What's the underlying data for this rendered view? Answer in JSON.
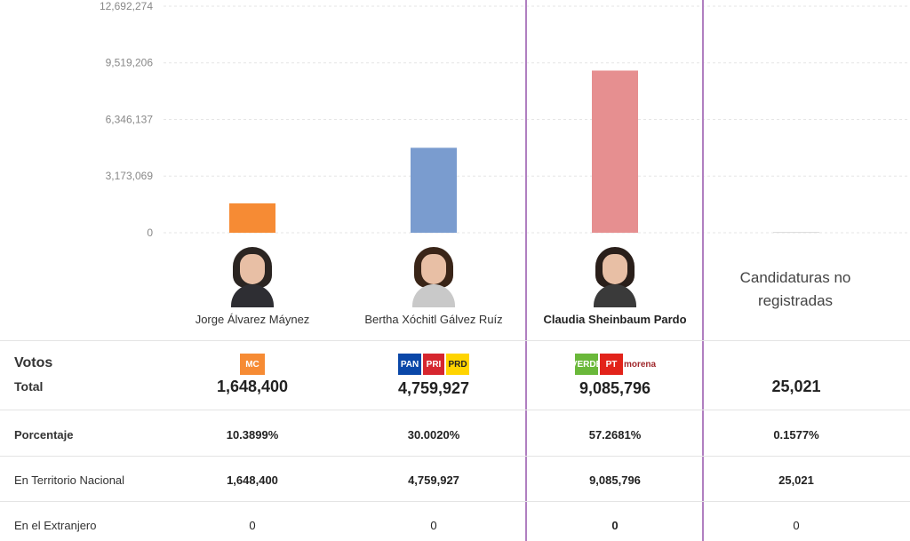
{
  "chart_data": {
    "type": "bar",
    "categories": [
      "Jorge Álvarez Máynez",
      "Bertha Xóchitl Gálvez Ruíz",
      "Claudia Sheinbaum Pardo",
      "Candidaturas no registradas"
    ],
    "values": [
      1648400,
      4759927,
      9085796,
      25021
    ],
    "colors": [
      "#f68b34",
      "#7a9ccf",
      "#e68f90",
      "#dddddd"
    ],
    "yticks": [
      0,
      3173069,
      6346137,
      9519206,
      12692274
    ],
    "ytick_labels": [
      "0",
      "3,173,069",
      "6,346,137",
      "9,519,206",
      "12,692,274"
    ],
    "ylim": [
      0,
      12692274
    ],
    "grid": true
  },
  "candidates": [
    {
      "name": "Jorge Álvarez Máynez",
      "hair": "#2b2522",
      "body": "#2e2e33",
      "logos": [
        {
          "text": "MC",
          "bg": "#f68b34",
          "fg": "#ffffff",
          "w": 28
        }
      ]
    },
    {
      "name": "Bertha Xóchitl Gálvez Ruíz",
      "hair": "#3a2518",
      "body": "#c9c9c9",
      "logos": [
        {
          "text": "PAN",
          "bg": "#0a47a8",
          "fg": "#ffffff",
          "w": 26
        },
        {
          "text": "PRI",
          "bg": "#d6262e",
          "fg": "#ffffff",
          "w": 24
        },
        {
          "text": "PRD",
          "bg": "#ffd400",
          "fg": "#222222",
          "w": 26
        }
      ]
    },
    {
      "name": "Claudia Sheinbaum Pardo",
      "hair": "#2a1f1a",
      "body": "#3a3a3a",
      "logos": [
        {
          "text": "VERDE",
          "bg": "#6ab83a",
          "fg": "#ffffff",
          "w": 26
        },
        {
          "text": "PT",
          "bg": "#e2231a",
          "fg": "#ffffff",
          "w": 26
        },
        {
          "text": "morena",
          "bg": "#ffffff",
          "fg": "#a0282c",
          "w": 34
        }
      ]
    }
  ],
  "cnr_label": "Candidaturas no registradas",
  "rows": {
    "votos_label": "Votos",
    "total_label": "Total",
    "porcentaje_label": "Porcentaje",
    "territorio_label": "En Territorio Nacional",
    "extranjero_label": "En el Extranjero"
  },
  "columns": [
    {
      "total": "1,648,400",
      "porcentaje": "10.3899%",
      "territorio": "1,648,400",
      "extranjero": "0"
    },
    {
      "total": "4,759,927",
      "porcentaje": "30.0020%",
      "territorio": "4,759,927",
      "extranjero": "0"
    },
    {
      "total": "9,085,796",
      "porcentaje": "57.2681%",
      "territorio": "9,085,796",
      "extranjero": "0"
    },
    {
      "total": "25,021",
      "porcentaje": "0.1577%",
      "territorio": "25,021",
      "extranjero": "0"
    }
  ]
}
